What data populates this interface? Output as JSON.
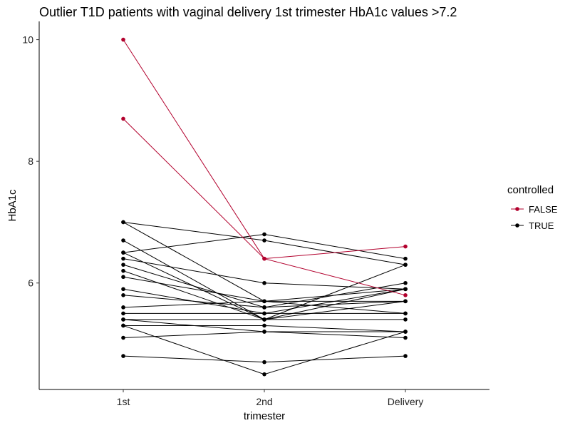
{
  "chart_data": {
    "type": "line",
    "title": "Outlier T1D patients with vaginal delivery 1st trimester HbA1c values >7.2",
    "xlabel": "trimester",
    "ylabel": "HbA1c",
    "categories": [
      "1st",
      "2nd",
      "Delivery"
    ],
    "ylim": [
      4.25,
      10.3
    ],
    "yticks": [
      6,
      8,
      10
    ],
    "grid": false,
    "legend": {
      "title": "controlled",
      "placement": "right",
      "entries": [
        {
          "label": "FALSE",
          "color": "#b2002d"
        },
        {
          "label": "TRUE",
          "color": "#000000"
        }
      ]
    },
    "series": [
      {
        "controlled": "FALSE",
        "values": [
          10.0,
          6.4,
          5.8
        ]
      },
      {
        "controlled": "FALSE",
        "values": [
          8.7,
          6.4,
          6.6
        ]
      },
      {
        "controlled": "TRUE",
        "values": [
          7.0,
          5.7,
          5.7
        ]
      },
      {
        "controlled": "TRUE",
        "values": [
          7.0,
          6.7,
          6.3
        ]
      },
      {
        "controlled": "TRUE",
        "values": [
          6.7,
          5.4,
          5.9
        ]
      },
      {
        "controlled": "TRUE",
        "values": [
          6.5,
          6.8,
          6.4
        ]
      },
      {
        "controlled": "TRUE",
        "values": [
          6.5,
          5.4,
          6.3
        ]
      },
      {
        "controlled": "TRUE",
        "values": [
          6.4,
          6.0,
          5.9
        ]
      },
      {
        "controlled": "TRUE",
        "values": [
          6.3,
          5.6,
          6.0
        ]
      },
      {
        "controlled": "TRUE",
        "values": [
          6.2,
          5.4,
          5.7
        ]
      },
      {
        "controlled": "TRUE",
        "values": [
          6.1,
          5.7,
          5.9
        ]
      },
      {
        "controlled": "TRUE",
        "values": [
          5.9,
          5.5,
          5.9
        ]
      },
      {
        "controlled": "TRUE",
        "values": [
          5.8,
          5.6,
          5.7
        ]
      },
      {
        "controlled": "TRUE",
        "values": [
          5.6,
          5.7,
          5.5
        ]
      },
      {
        "controlled": "TRUE",
        "values": [
          5.5,
          5.5,
          5.5
        ]
      },
      {
        "controlled": "TRUE",
        "values": [
          5.4,
          5.4,
          5.4
        ]
      },
      {
        "controlled": "TRUE",
        "values": [
          5.4,
          5.2,
          5.1
        ]
      },
      {
        "controlled": "TRUE",
        "values": [
          5.3,
          4.5,
          5.2
        ]
      },
      {
        "controlled": "TRUE",
        "values": [
          5.1,
          5.2,
          5.2
        ]
      },
      {
        "controlled": "TRUE",
        "values": [
          5.3,
          5.3,
          5.2
        ]
      },
      {
        "controlled": "TRUE",
        "values": [
          4.8,
          4.7,
          4.8
        ]
      }
    ]
  }
}
